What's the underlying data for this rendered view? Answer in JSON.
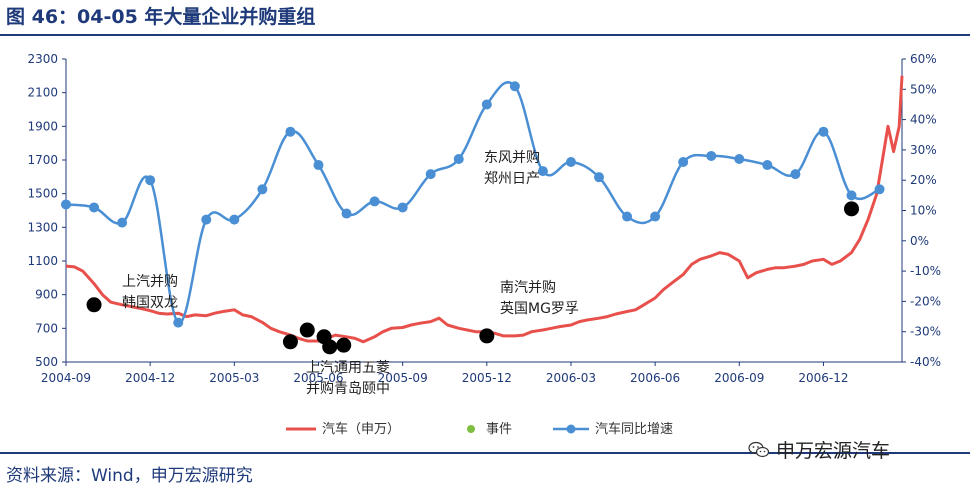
{
  "page": {
    "title": "图 46：04-05 年大量企业并购重组",
    "source": "资料来源：Wind，申万宏源研究",
    "watermark": "申万宏源汽车"
  },
  "chart_data": {
    "type": "line",
    "title": "图 46：04-05 年大量企业并购重组",
    "left_axis": {
      "range": [
        500,
        2300
      ],
      "ticks": [
        500,
        700,
        900,
        1100,
        1300,
        1500,
        1700,
        1900,
        2100,
        2300
      ]
    },
    "right_axis": {
      "range": [
        -40,
        60
      ],
      "ticks": [
        "-40%",
        "-30%",
        "-20%",
        "-10%",
        "0%",
        "10%",
        "20%",
        "30%",
        "40%",
        "50%",
        "60%"
      ]
    },
    "x_ticks": [
      "2004-09",
      "2004-12",
      "2005-03",
      "2005-06",
      "2005-09",
      "2005-12",
      "2006-03",
      "2006-06",
      "2006-09",
      "2006-12"
    ],
    "x_range_months": [
      0,
      29.8
    ],
    "series": [
      {
        "name": "汽车（申万）",
        "axis": "left",
        "color": "#e8504c",
        "points": [
          [
            0.0,
            1070
          ],
          [
            0.3,
            1065
          ],
          [
            0.6,
            1040
          ],
          [
            1.0,
            965
          ],
          [
            1.3,
            900
          ],
          [
            1.6,
            855
          ],
          [
            2.0,
            840
          ],
          [
            2.3,
            830
          ],
          [
            2.6,
            820
          ],
          [
            3.0,
            805
          ],
          [
            3.3,
            790
          ],
          [
            3.6,
            785
          ],
          [
            4.0,
            790
          ],
          [
            4.3,
            770
          ],
          [
            4.6,
            780
          ],
          [
            5.0,
            775
          ],
          [
            5.3,
            790
          ],
          [
            5.6,
            800
          ],
          [
            6.0,
            810
          ],
          [
            6.3,
            780
          ],
          [
            6.6,
            770
          ],
          [
            7.0,
            735
          ],
          [
            7.3,
            700
          ],
          [
            7.6,
            680
          ],
          [
            8.0,
            660
          ],
          [
            8.3,
            640
          ],
          [
            8.6,
            625
          ],
          [
            9.0,
            625
          ],
          [
            9.3,
            640
          ],
          [
            9.6,
            660
          ],
          [
            10.0,
            650
          ],
          [
            10.3,
            640
          ],
          [
            10.6,
            620
          ],
          [
            11.0,
            650
          ],
          [
            11.3,
            680
          ],
          [
            11.6,
            700
          ],
          [
            12.0,
            705
          ],
          [
            12.3,
            720
          ],
          [
            12.6,
            730
          ],
          [
            13.0,
            740
          ],
          [
            13.3,
            760
          ],
          [
            13.6,
            720
          ],
          [
            14.0,
            700
          ],
          [
            14.3,
            690
          ],
          [
            14.6,
            680
          ],
          [
            15.0,
            680
          ],
          [
            15.3,
            670
          ],
          [
            15.6,
            655
          ],
          [
            16.0,
            655
          ],
          [
            16.3,
            660
          ],
          [
            16.6,
            680
          ],
          [
            17.0,
            690
          ],
          [
            17.3,
            700
          ],
          [
            17.6,
            710
          ],
          [
            18.0,
            720
          ],
          [
            18.3,
            740
          ],
          [
            18.6,
            750
          ],
          [
            19.0,
            760
          ],
          [
            19.3,
            770
          ],
          [
            19.6,
            785
          ],
          [
            20.0,
            800
          ],
          [
            20.3,
            810
          ],
          [
            20.6,
            840
          ],
          [
            21.0,
            880
          ],
          [
            21.3,
            930
          ],
          [
            21.6,
            970
          ],
          [
            22.0,
            1020
          ],
          [
            22.3,
            1080
          ],
          [
            22.6,
            1110
          ],
          [
            23.0,
            1130
          ],
          [
            23.3,
            1150
          ],
          [
            23.6,
            1140
          ],
          [
            24.0,
            1100
          ],
          [
            24.3,
            1000
          ],
          [
            24.6,
            1030
          ],
          [
            25.0,
            1050
          ],
          [
            25.3,
            1060
          ],
          [
            25.6,
            1060
          ],
          [
            26.0,
            1070
          ],
          [
            26.3,
            1080
          ],
          [
            26.6,
            1100
          ],
          [
            27.0,
            1110
          ],
          [
            27.3,
            1080
          ],
          [
            27.6,
            1100
          ],
          [
            28.0,
            1150
          ],
          [
            28.3,
            1230
          ],
          [
            28.6,
            1350
          ],
          [
            28.9,
            1500
          ],
          [
            29.1,
            1700
          ],
          [
            29.3,
            1900
          ],
          [
            29.5,
            1750
          ],
          [
            29.7,
            1900
          ],
          [
            29.8,
            2200
          ]
        ]
      },
      {
        "name": "事件",
        "axis": "left",
        "color": "#000000",
        "points": [
          [
            1.0,
            840
          ],
          [
            8.0,
            620
          ],
          [
            8.6,
            690
          ],
          [
            9.2,
            650
          ],
          [
            9.4,
            590
          ],
          [
            9.9,
            600
          ],
          [
            15.0,
            655
          ],
          [
            28.0,
            1410
          ]
        ]
      },
      {
        "name": "汽车同比增速",
        "axis": "right",
        "color": "#4a8fd4",
        "points": [
          [
            0.0,
            12
          ],
          [
            1.0,
            11
          ],
          [
            2.0,
            6
          ],
          [
            3.0,
            20
          ],
          [
            4.0,
            -27
          ],
          [
            5.0,
            7
          ],
          [
            6.0,
            7
          ],
          [
            7.0,
            17
          ],
          [
            8.0,
            36
          ],
          [
            9.0,
            25
          ],
          [
            10.0,
            9
          ],
          [
            11.0,
            13
          ],
          [
            12.0,
            11
          ],
          [
            13.0,
            22
          ],
          [
            14.0,
            27
          ],
          [
            15.0,
            45
          ],
          [
            16.0,
            51
          ],
          [
            17.0,
            23
          ],
          [
            18.0,
            26
          ],
          [
            19.0,
            21
          ],
          [
            20.0,
            8
          ],
          [
            21.0,
            8
          ],
          [
            22.0,
            26
          ],
          [
            23.0,
            28
          ],
          [
            24.0,
            27
          ],
          [
            25.0,
            25
          ],
          [
            26.0,
            22
          ],
          [
            27.0,
            36
          ],
          [
            28.0,
            15
          ],
          [
            29.0,
            17
          ]
        ]
      }
    ],
    "annotations": [
      {
        "lines": [
          "上汽并购",
          "韩国双龙"
        ]
      },
      {
        "lines": [
          "上汽通用五菱",
          "并购青岛颐中"
        ]
      },
      {
        "lines": [
          "东风并购",
          "郑州日产"
        ]
      },
      {
        "lines": [
          "南汽并购",
          "英国MG罗孚"
        ]
      }
    ],
    "legend": [
      "汽车（申万）",
      "事件",
      "汽车同比增速"
    ]
  }
}
